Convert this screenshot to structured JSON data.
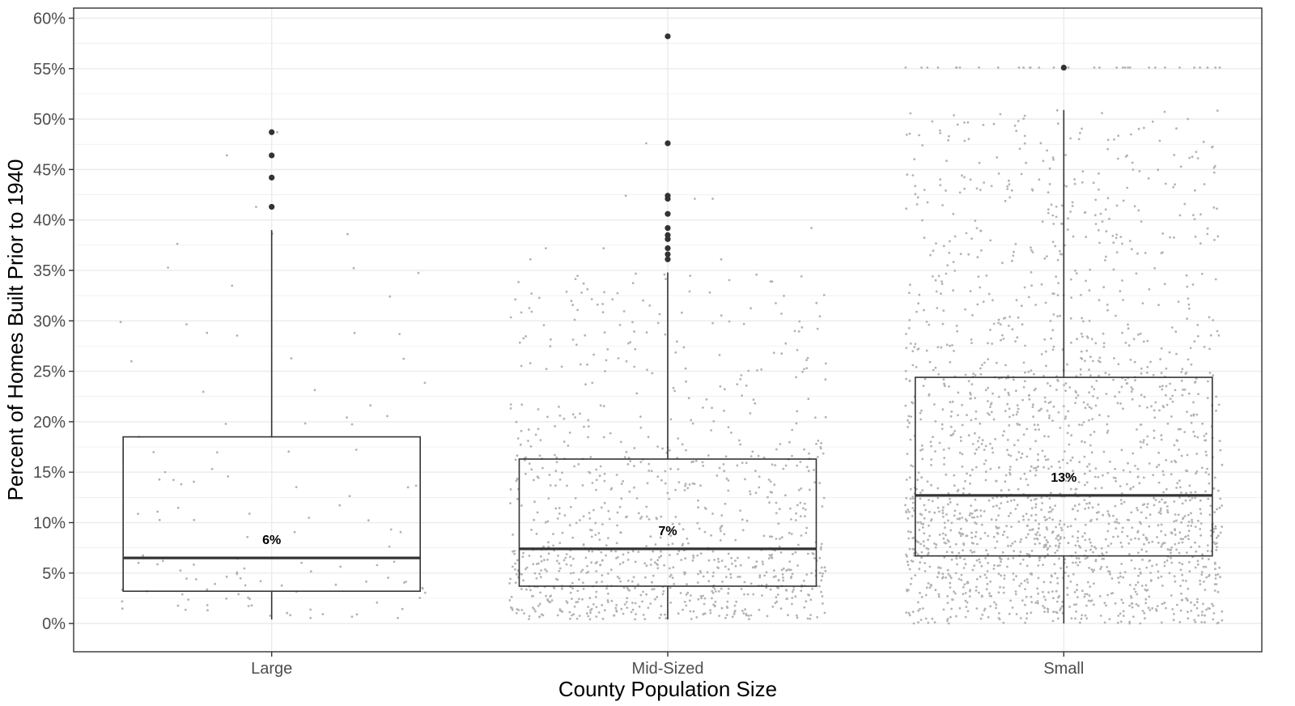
{
  "chart_data": {
    "type": "boxplot",
    "xlabel": "County Population Size",
    "ylabel": "Percent of Homes Built Prior to 1940",
    "ylim": [
      -2.8,
      61
    ],
    "yticks": [
      0,
      5,
      10,
      15,
      20,
      25,
      30,
      35,
      40,
      45,
      50,
      55,
      60
    ],
    "ytick_labels": [
      "0%",
      "5%",
      "10%",
      "15%",
      "20%",
      "25%",
      "30%",
      "35%",
      "40%",
      "45%",
      "50%",
      "55%",
      "60%"
    ],
    "grid": true,
    "categories": [
      "Large",
      "Mid-Sized",
      "Small"
    ],
    "boxes": [
      {
        "category": "Large",
        "whisker_low": 0.4,
        "q1": 3.2,
        "median": 6.5,
        "q3": 18.5,
        "whisker_high": 39.0,
        "outliers": [
          41.3,
          44.2,
          46.4,
          48.7
        ],
        "median_label": "6%",
        "jitter_count": 120
      },
      {
        "category": "Mid-Sized",
        "whisker_low": 0.4,
        "q1": 3.7,
        "median": 7.4,
        "q3": 16.3,
        "whisker_high": 34.8,
        "outliers": [
          36.1,
          36.6,
          37.2,
          38.1,
          38.5,
          39.2,
          40.6,
          42.1,
          42.4,
          47.6,
          58.2
        ],
        "median_label": "7%",
        "jitter_count": 1000
      },
      {
        "category": "Small",
        "whisker_low": 0.0,
        "q1": 6.7,
        "median": 12.7,
        "q3": 24.4,
        "whisker_high": 50.9,
        "outliers": [
          55.1
        ],
        "median_label": "13%",
        "jitter_count": 2000
      }
    ],
    "colors": {
      "jitter": "#b3b3b3",
      "box": "#333333",
      "outlier": "#333333",
      "grid": "#ebebeb",
      "panel_border": "#333333"
    }
  }
}
